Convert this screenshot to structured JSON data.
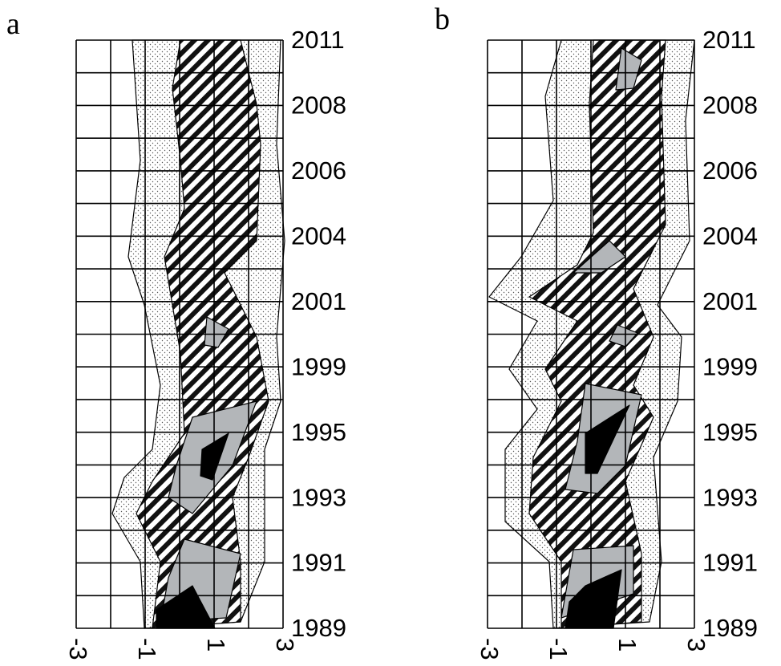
{
  "chart_data": [
    {
      "type": "contour",
      "label": "a",
      "categories": [
        "1989",
        null,
        "1991",
        null,
        "1993",
        null,
        "1995",
        null,
        "1999",
        null,
        "2001",
        null,
        "2004",
        null,
        "2006",
        null,
        "2008",
        null,
        "2011"
      ],
      "xlim": [
        -3,
        3
      ],
      "xticks": [
        -3,
        -1,
        1,
        3
      ],
      "xgrid": [
        -3,
        -2,
        -1,
        0,
        1,
        2,
        3
      ],
      "grid": true
    },
    {
      "type": "contour",
      "label": "b",
      "categories": [
        "1989",
        null,
        "1991",
        null,
        "1993",
        null,
        "1995",
        null,
        "1999",
        null,
        "2001",
        null,
        "2004",
        null,
        "2006",
        null,
        "2008",
        null,
        "2011"
      ],
      "xlim": [
        -3,
        3
      ],
      "xticks": [
        -3,
        -1,
        1,
        3
      ],
      "xgrid": [
        -3,
        -2,
        -1,
        0,
        1,
        2,
        3
      ],
      "grid": true
    }
  ]
}
